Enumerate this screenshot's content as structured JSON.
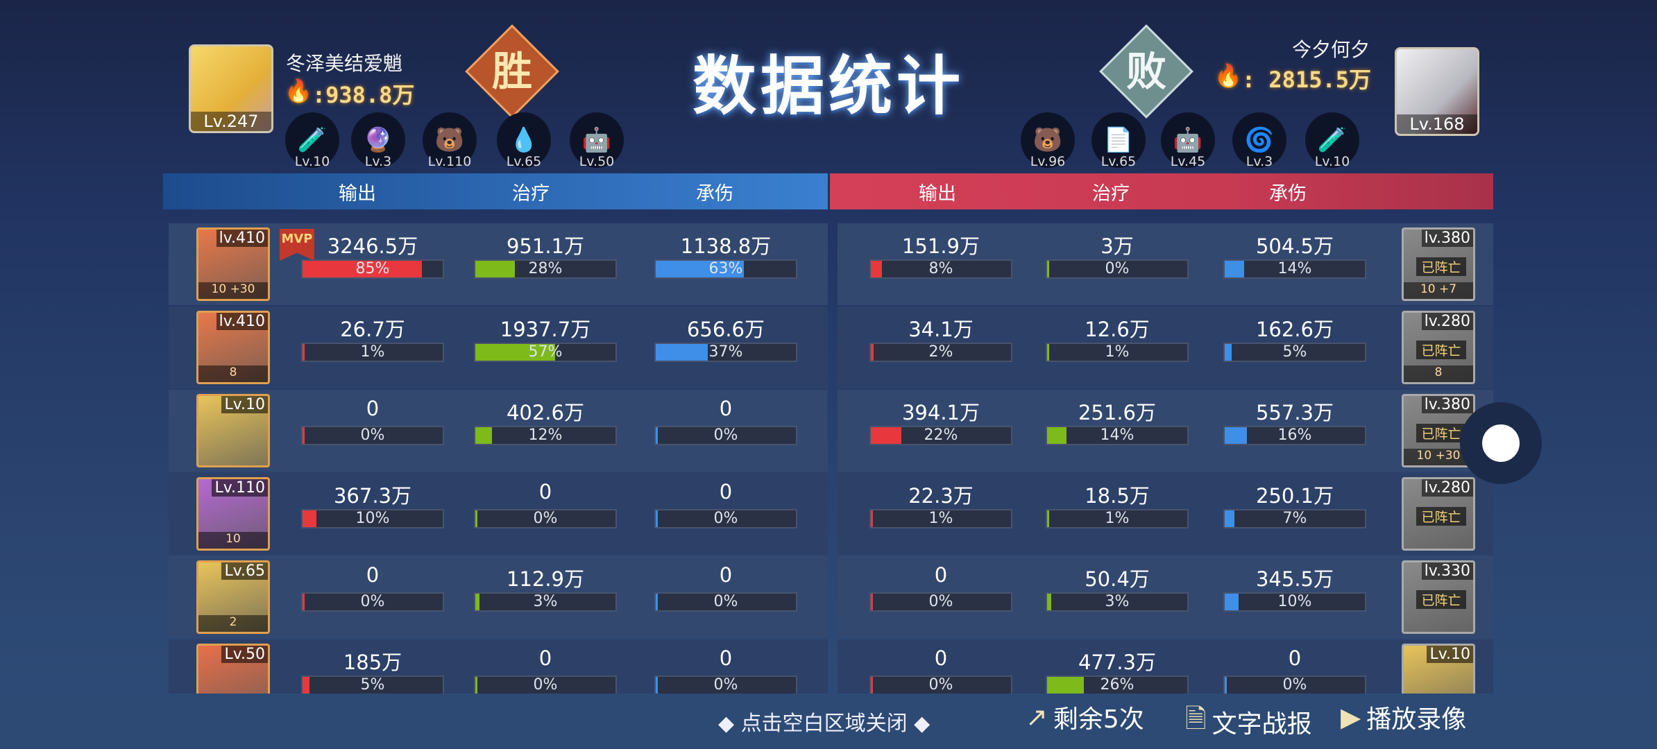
{
  "title": "数据统计",
  "left_player": {
    "name": "冬泽美结爱魈",
    "power": ":938.8万",
    "level": "Lv.247",
    "result": "胜",
    "avatar_color": "#e9c54a",
    "team": [
      {
        "lv": "Lv.10",
        "icon": "flask-icon"
      },
      {
        "lv": "Lv.3",
        "icon": "purple-flame-icon"
      },
      {
        "lv": "Lv.110",
        "icon": "bear-icon"
      },
      {
        "lv": "Lv.65",
        "icon": "blue-spirit-icon"
      },
      {
        "lv": "Lv.50",
        "icon": "robot-helmet-icon"
      }
    ]
  },
  "right_player": {
    "name": "今夕何夕",
    "power": ": 2815.5万",
    "level": "Lv.168",
    "result": "败",
    "avatar_color": "#d8d8dc",
    "team": [
      {
        "lv": "Lv.96",
        "icon": "bear-icon"
      },
      {
        "lv": "Lv.65",
        "icon": "paper-mask-icon"
      },
      {
        "lv": "Lv.45",
        "icon": "robot-helmet-icon"
      },
      {
        "lv": "Lv.3",
        "icon": "red-swirl-icon"
      },
      {
        "lv": "Lv.10",
        "icon": "flask-icon"
      }
    ]
  },
  "headers": {
    "left": [
      "输出",
      "治疗",
      "承伤"
    ],
    "right": [
      "输出",
      "治疗",
      "承伤"
    ]
  },
  "colors": {
    "damage": "#e8383d",
    "heal": "#7dba1a",
    "tank": "#3f8ee8",
    "left_header": "#2a64aa",
    "right_header": "#c83a52"
  },
  "left_rows": [
    {
      "lv": "lv.410",
      "mvp": "MVP",
      "star": "10 +30",
      "bg": "#e8784a",
      "stats": [
        [
          "3246.5万",
          85
        ],
        [
          "951.1万",
          28
        ],
        [
          "1138.8万",
          63
        ]
      ]
    },
    {
      "lv": "lv.410",
      "star": "8",
      "bg": "#e8784a",
      "stats": [
        [
          "26.7万",
          1
        ],
        [
          "1937.7万",
          57
        ],
        [
          "656.6万",
          37
        ]
      ]
    },
    {
      "lv": "Lv.10",
      "star": "",
      "bg": "#e8c45a",
      "stats": [
        [
          "0",
          0
        ],
        [
          "402.6万",
          12
        ],
        [
          "0",
          0
        ]
      ]
    },
    {
      "lv": "Lv.110",
      "star": "10",
      "bg": "#b46ad0",
      "stats": [
        [
          "367.3万",
          10
        ],
        [
          "0",
          0
        ],
        [
          "0",
          0
        ]
      ]
    },
    {
      "lv": "Lv.65",
      "star": "2",
      "bg": "#e8c45a",
      "stats": [
        [
          "0",
          0
        ],
        [
          "112.9万",
          3
        ],
        [
          "0",
          0
        ]
      ]
    },
    {
      "lv": "Lv.50",
      "star": "",
      "bg": "#e8704a",
      "stats": [
        [
          "185万",
          5
        ],
        [
          "0",
          0
        ],
        [
          "0",
          0
        ]
      ]
    }
  ],
  "right_rows": [
    {
      "lv": "lv.380",
      "dead": "已阵亡",
      "star": "10 +7",
      "bg": "#8a8a8a",
      "stats": [
        [
          "151.9万",
          8
        ],
        [
          "3万",
          0
        ],
        [
          "504.5万",
          14
        ]
      ]
    },
    {
      "lv": "lv.280",
      "dead": "已阵亡",
      "star": "8",
      "bg": "#8a8a8a",
      "stats": [
        [
          "34.1万",
          2
        ],
        [
          "12.6万",
          1
        ],
        [
          "162.6万",
          5
        ]
      ]
    },
    {
      "lv": "lv.380",
      "dead": "已阵亡",
      "star": "10 +30",
      "bg": "#8a8a8a",
      "stats": [
        [
          "394.1万",
          22
        ],
        [
          "251.6万",
          14
        ],
        [
          "557.3万",
          16
        ]
      ]
    },
    {
      "lv": "lv.280",
      "dead": "已阵亡",
      "star": "",
      "bg": "#8a8a8a",
      "stats": [
        [
          "22.3万",
          1
        ],
        [
          "18.5万",
          1
        ],
        [
          "250.1万",
          7
        ]
      ]
    },
    {
      "lv": "lv.330",
      "dead": "已阵亡",
      "star": "",
      "bg": "#8a8a8a",
      "stats": [
        [
          "0",
          0
        ],
        [
          "50.4万",
          3
        ],
        [
          "345.5万",
          10
        ]
      ]
    },
    {
      "lv": "Lv.10",
      "star": "",
      "bg": "#e8c45a",
      "stats": [
        [
          "0",
          0
        ],
        [
          "477.3万",
          26
        ],
        [
          "0",
          0
        ]
      ]
    }
  ],
  "footer": {
    "close_hint": "◆ 点击空白区域关闭 ◆",
    "share": "剩余5次",
    "text_report": "文字战报",
    "replay": "播放录像"
  }
}
